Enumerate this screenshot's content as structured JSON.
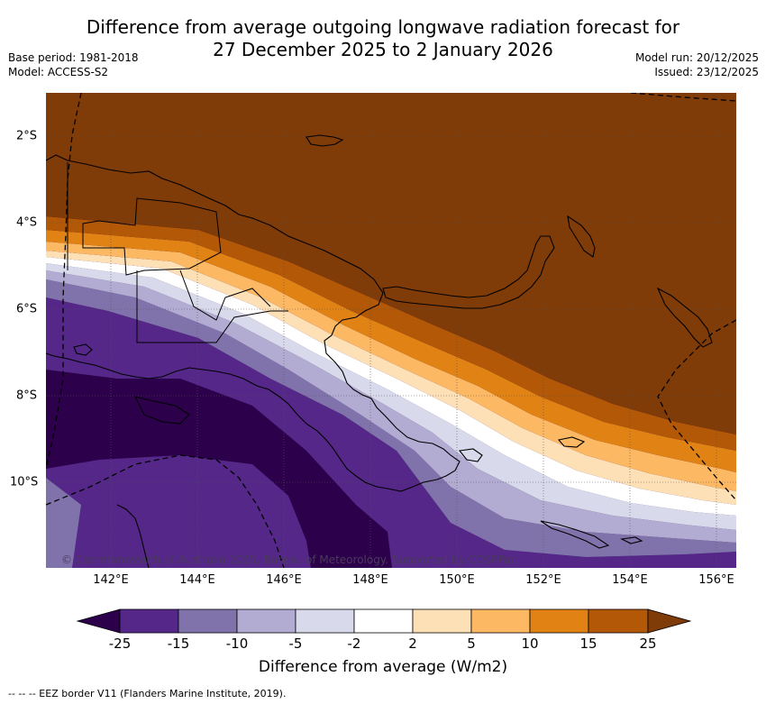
{
  "title": {
    "line1": "Difference from average outgoing longwave radiation forecast for",
    "line2": "27 December 2025 to 2 January 2026"
  },
  "meta": {
    "base_period": "Base period: 1981-2018",
    "model": "Model: ACCESS-S2",
    "model_run": "Model run: 20/12/2025",
    "issued": "Issued: 23/12/2025"
  },
  "map": {
    "lat_labels": [
      "2°S",
      "4°S",
      "6°S",
      "8°S",
      "10°S"
    ],
    "lon_labels": [
      "142°E",
      "144°E",
      "146°E",
      "148°E",
      "150°E",
      "152°E",
      "154°E",
      "156°E"
    ],
    "copyright": "© Commonwealth of Australia 2025, Bureau of Meteorology. Supported by COSPPac"
  },
  "colorbar": {
    "title": "Difference from average (W/m2)",
    "ticks": [
      "-25",
      "-15",
      "-10",
      "-5",
      "-2",
      "2",
      "5",
      "10",
      "15",
      "25"
    ],
    "colors": {
      "lt25": "#2d004b",
      "m25_m15": "#542788",
      "m15_m10": "#8073ac",
      "m10_m5": "#b2abd2",
      "m5_m2": "#d8daeb",
      "m2_2": "#ffffff",
      "p2_5": "#fee0b6",
      "p5_10": "#fdb863",
      "p10_15": "#e08214",
      "p15_25": "#b35806",
      "gt25": "#7f3b08"
    }
  },
  "footer": "--  --  -- EEZ border V11 (Flanders Marine Institute, 2019)."
}
